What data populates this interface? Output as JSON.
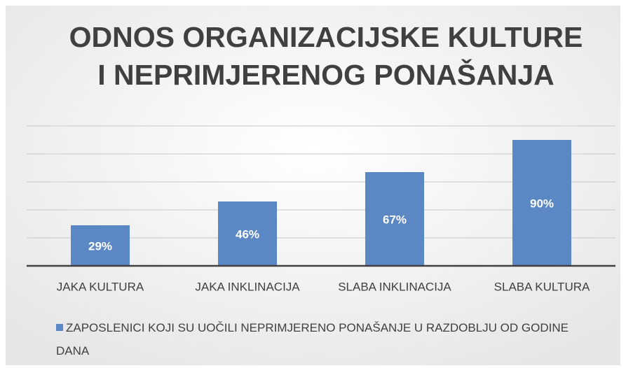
{
  "chart_data": {
    "type": "bar",
    "title": [
      "ODNOS ORGANIZACIJSKE KULTURE",
      "I NEPRIMJERENOG PONAŠANJA"
    ],
    "categories": [
      "JAKA KULTURA",
      "JAKA INKLINACIJA",
      "SLABA INKLINACIJA",
      "SLABA KULTURA"
    ],
    "series": [
      {
        "name": "ZAPOSLENICI KOJI SU UOČILI NEPRIMJERENO PONAŠANJE U RAZDOBLJU OD GODINE DANA",
        "color": "#5b87c5",
        "values": [
          29,
          46,
          67,
          90
        ],
        "value_labels": [
          "29%",
          "46%",
          "67%",
          "90%"
        ]
      }
    ],
    "ylim": [
      0,
      100
    ],
    "yticks": [
      0,
      20,
      40,
      60,
      80,
      100
    ],
    "grid": true,
    "legend": "bottom"
  }
}
